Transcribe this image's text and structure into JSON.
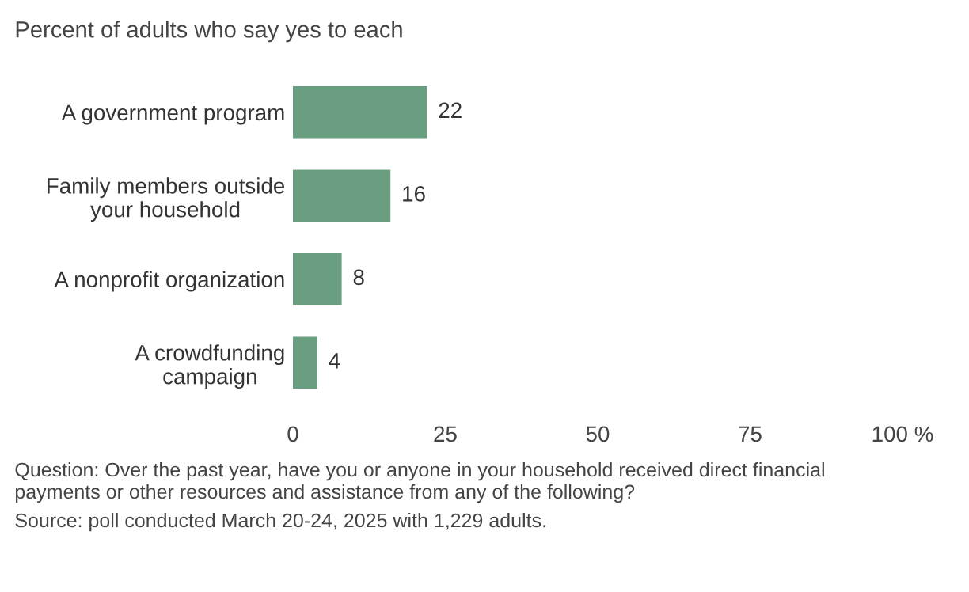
{
  "chart_data": {
    "type": "bar",
    "orientation": "horizontal",
    "subtitle": "Percent of adults who say yes to each",
    "categories": [
      "A government program",
      "Family members outside\nyour household",
      "A nonprofit organization",
      "A crowdfunding\ncampaign"
    ],
    "values": [
      22,
      16,
      8,
      4
    ],
    "color": "#6a9e80",
    "data_labels": true,
    "xlim": [
      0,
      100
    ],
    "xticks": [
      0,
      25,
      50,
      75,
      {
        "value": 100,
        "label": "100 %"
      }
    ],
    "grid": false,
    "annotations": [
      "Question: Over the past year, have you or anyone in your household received direct financial\npayments or other resources and assistance from any of the following?",
      "Source: poll conducted March 20-24, 2025 with 1,229 adults."
    ]
  }
}
